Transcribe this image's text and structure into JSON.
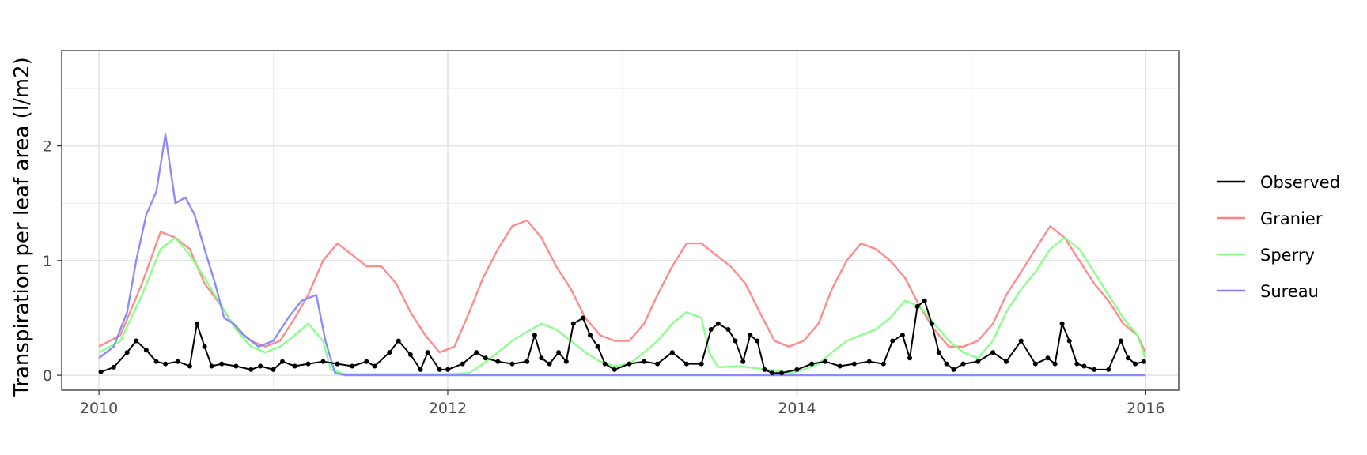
{
  "chart_data": {
    "type": "line",
    "title": "",
    "xlabel": "",
    "ylabel": "Transpiration per leaf area (l/m2)",
    "x_ticks": [
      "2010",
      "2012",
      "2014",
      "2016"
    ],
    "y_ticks": [
      "0",
      "1",
      "2"
    ],
    "xlim": [
      "2009-10-15",
      "2016-03-10"
    ],
    "ylim": [
      -0.13,
      2.83
    ],
    "grid": true,
    "legend_position": "right",
    "series": [
      {
        "name": "Observed",
        "color": "#000000",
        "marker": "point",
        "x": [
          "2010-01-05",
          "2010-02-01",
          "2010-03-01",
          "2010-03-20",
          "2010-04-10",
          "2010-05-01",
          "2010-05-20",
          "2010-06-15",
          "2010-07-10",
          "2010-07-25",
          "2010-08-10",
          "2010-08-25",
          "2010-09-15",
          "2010-10-15",
          "2010-11-15",
          "2010-12-05",
          "2011-01-01",
          "2011-01-20",
          "2011-02-15",
          "2011-03-15",
          "2011-04-15",
          "2011-05-15",
          "2011-06-15",
          "2011-07-15",
          "2011-08-01",
          "2011-09-01",
          "2011-09-20",
          "2011-10-15",
          "2011-11-05",
          "2011-11-20",
          "2011-12-15",
          "2012-01-01",
          "2012-02-01",
          "2012-03-01",
          "2012-03-20",
          "2012-04-15",
          "2012-05-15",
          "2012-06-15",
          "2012-07-01",
          "2012-07-15",
          "2012-08-01",
          "2012-08-20",
          "2012-09-05",
          "2012-09-20",
          "2012-10-10",
          "2012-10-25",
          "2012-11-10",
          "2012-11-25",
          "2012-12-15",
          "2013-01-15",
          "2013-02-15",
          "2013-03-15",
          "2013-04-15",
          "2013-05-15",
          "2013-06-15",
          "2013-07-05",
          "2013-07-20",
          "2013-08-10",
          "2013-08-25",
          "2013-09-10",
          "2013-09-25",
          "2013-10-10",
          "2013-10-25",
          "2013-11-10",
          "2013-11-30",
          "2014-01-01",
          "2014-02-01",
          "2014-03-01",
          "2014-04-01",
          "2014-05-01",
          "2014-06-01",
          "2014-07-01",
          "2014-07-20",
          "2014-08-10",
          "2014-08-25",
          "2014-09-10",
          "2014-09-25",
          "2014-10-10",
          "2014-10-25",
          "2014-11-10",
          "2014-11-25",
          "2014-12-15",
          "2015-01-15",
          "2015-02-15",
          "2015-03-15",
          "2015-04-15",
          "2015-05-15",
          "2015-06-10",
          "2015-06-25",
          "2015-07-10",
          "2015-07-25",
          "2015-08-10",
          "2015-08-25",
          "2015-09-15",
          "2015-10-15",
          "2015-11-10",
          "2015-11-25",
          "2015-12-10",
          "2015-12-28"
        ],
        "values": [
          0.03,
          0.07,
          0.2,
          0.3,
          0.22,
          0.12,
          0.1,
          0.12,
          0.08,
          0.45,
          0.25,
          0.08,
          0.1,
          0.08,
          0.05,
          0.08,
          0.05,
          0.12,
          0.08,
          0.1,
          0.12,
          0.1,
          0.08,
          0.12,
          0.08,
          0.2,
          0.3,
          0.18,
          0.05,
          0.2,
          0.05,
          0.05,
          0.1,
          0.2,
          0.15,
          0.12,
          0.1,
          0.12,
          0.35,
          0.15,
          0.1,
          0.2,
          0.12,
          0.45,
          0.5,
          0.35,
          0.25,
          0.1,
          0.05,
          0.1,
          0.12,
          0.1,
          0.2,
          0.1,
          0.1,
          0.4,
          0.45,
          0.4,
          0.3,
          0.12,
          0.35,
          0.3,
          0.05,
          0.02,
          0.02,
          0.05,
          0.1,
          0.12,
          0.08,
          0.1,
          0.12,
          0.1,
          0.3,
          0.35,
          0.15,
          0.6,
          0.65,
          0.45,
          0.2,
          0.1,
          0.05,
          0.1,
          0.12,
          0.2,
          0.12,
          0.3,
          0.1,
          0.15,
          0.1,
          0.45,
          0.3,
          0.1,
          0.08,
          0.05,
          0.05,
          0.3,
          0.15,
          0.1,
          0.12
        ]
      },
      {
        "name": "Granier",
        "color": "#ff8080",
        "x": [
          "2010-01-01",
          "2010-02-15",
          "2010-04-01",
          "2010-05-10",
          "2010-06-10",
          "2010-07-10",
          "2010-08-10",
          "2010-09-15",
          "2010-10-15",
          "2010-11-15",
          "2010-12-15",
          "2011-01-15",
          "2011-02-15",
          "2011-03-15",
          "2011-04-15",
          "2011-05-15",
          "2011-06-15",
          "2011-07-15",
          "2011-08-15",
          "2011-09-15",
          "2011-10-15",
          "2011-11-15",
          "2011-12-15",
          "2012-01-15",
          "2012-02-15",
          "2012-03-15",
          "2012-04-15",
          "2012-05-15",
          "2012-06-15",
          "2012-07-15",
          "2012-08-15",
          "2012-09-15",
          "2012-10-15",
          "2012-11-15",
          "2012-12-15",
          "2013-01-15",
          "2013-02-15",
          "2013-03-15",
          "2013-04-15",
          "2013-05-15",
          "2013-06-15",
          "2013-07-15",
          "2013-08-15",
          "2013-09-15",
          "2013-10-15",
          "2013-11-15",
          "2013-12-15",
          "2014-01-15",
          "2014-02-15",
          "2014-03-15",
          "2014-04-15",
          "2014-05-15",
          "2014-06-15",
          "2014-07-15",
          "2014-08-15",
          "2014-09-15",
          "2014-10-15",
          "2014-11-15",
          "2014-12-15",
          "2015-01-15",
          "2015-02-15",
          "2015-03-15",
          "2015-04-15",
          "2015-05-15",
          "2015-06-15",
          "2015-07-15",
          "2015-08-15",
          "2015-09-15",
          "2015-10-15",
          "2015-11-15",
          "2015-12-15",
          "2015-12-31"
        ],
        "values": [
          0.25,
          0.35,
          0.8,
          1.25,
          1.2,
          1.1,
          0.8,
          0.6,
          0.4,
          0.3,
          0.25,
          0.3,
          0.5,
          0.7,
          1.0,
          1.15,
          1.05,
          0.95,
          0.95,
          0.8,
          0.55,
          0.35,
          0.2,
          0.25,
          0.55,
          0.85,
          1.1,
          1.3,
          1.35,
          1.2,
          0.95,
          0.75,
          0.5,
          0.35,
          0.3,
          0.3,
          0.45,
          0.7,
          0.95,
          1.15,
          1.15,
          1.05,
          0.95,
          0.8,
          0.55,
          0.3,
          0.25,
          0.3,
          0.45,
          0.75,
          1.0,
          1.15,
          1.1,
          1.0,
          0.85,
          0.6,
          0.4,
          0.25,
          0.25,
          0.3,
          0.45,
          0.7,
          0.9,
          1.1,
          1.3,
          1.2,
          1.0,
          0.8,
          0.65,
          0.45,
          0.35,
          0.2
        ]
      },
      {
        "name": "Sperry",
        "color": "#80ff80",
        "x": [
          "2010-01-01",
          "2010-02-15",
          "2010-04-01",
          "2010-05-10",
          "2010-06-10",
          "2010-07-10",
          "2010-08-10",
          "2010-09-15",
          "2010-10-15",
          "2010-11-15",
          "2010-12-15",
          "2011-01-15",
          "2011-02-15",
          "2011-03-15",
          "2011-04-15",
          "2011-05-01",
          "2011-06-01",
          "2011-09-01",
          "2011-12-01",
          "2012-01-01",
          "2012-02-15",
          "2012-03-15",
          "2012-04-15",
          "2012-05-15",
          "2012-06-15",
          "2012-07-15",
          "2012-08-15",
          "2012-09-15",
          "2012-10-15",
          "2012-11-15",
          "2012-12-15",
          "2013-01-15",
          "2013-02-15",
          "2013-03-15",
          "2013-04-15",
          "2013-05-15",
          "2013-06-15",
          "2013-07-01",
          "2013-07-20",
          "2013-09-01",
          "2013-11-01",
          "2013-12-20",
          "2014-01-15",
          "2014-02-15",
          "2014-03-15",
          "2014-04-15",
          "2014-05-15",
          "2014-06-15",
          "2014-07-15",
          "2014-08-15",
          "2014-09-15",
          "2014-10-15",
          "2014-11-15",
          "2014-12-15",
          "2015-01-15",
          "2015-02-15",
          "2015-03-15",
          "2015-04-15",
          "2015-05-15",
          "2015-06-15",
          "2015-07-15",
          "2015-08-15",
          "2015-09-15",
          "2015-10-15",
          "2015-11-15",
          "2015-12-15",
          "2015-12-31"
        ],
        "values": [
          0.2,
          0.3,
          0.7,
          1.1,
          1.2,
          1.05,
          0.85,
          0.6,
          0.4,
          0.25,
          0.2,
          0.25,
          0.35,
          0.45,
          0.3,
          0.05,
          0.01,
          0.01,
          0.01,
          0.01,
          0.02,
          0.1,
          0.2,
          0.3,
          0.38,
          0.45,
          0.4,
          0.3,
          0.2,
          0.12,
          0.08,
          0.1,
          0.2,
          0.3,
          0.45,
          0.55,
          0.5,
          0.2,
          0.07,
          0.08,
          0.05,
          0.02,
          0.05,
          0.1,
          0.2,
          0.3,
          0.35,
          0.4,
          0.5,
          0.65,
          0.6,
          0.45,
          0.3,
          0.2,
          0.15,
          0.3,
          0.55,
          0.75,
          0.9,
          1.1,
          1.2,
          1.1,
          0.9,
          0.7,
          0.5,
          0.35,
          0.15
        ]
      },
      {
        "name": "Sureau",
        "color": "#8080ff",
        "x": [
          "2010-01-01",
          "2010-02-01",
          "2010-03-01",
          "2010-03-20",
          "2010-04-10",
          "2010-05-01",
          "2010-05-20",
          "2010-06-10",
          "2010-07-01",
          "2010-07-20",
          "2010-08-10",
          "2010-09-01",
          "2010-09-20",
          "2010-10-10",
          "2010-11-01",
          "2010-12-01",
          "2011-01-01",
          "2011-02-01",
          "2011-03-01",
          "2011-04-01",
          "2011-04-20",
          "2011-05-10",
          "2011-06-01",
          "2016-01-01"
        ],
        "values": [
          0.15,
          0.25,
          0.55,
          1.0,
          1.4,
          1.6,
          2.1,
          1.5,
          1.55,
          1.4,
          1.1,
          0.8,
          0.5,
          0.45,
          0.35,
          0.25,
          0.3,
          0.5,
          0.65,
          0.7,
          0.3,
          0.02,
          0.0,
          0.0
        ]
      }
    ]
  }
}
